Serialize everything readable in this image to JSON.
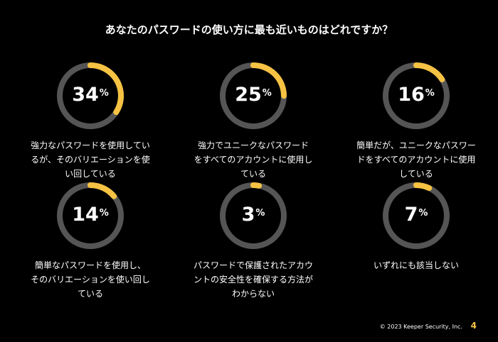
{
  "title": "あなたのパスワードの使い方に最も近いものはどれですか？",
  "colors": {
    "accent": "#f5c243",
    "track": "#555555",
    "background": "#000000",
    "text": "#ffffff"
  },
  "chart_data": {
    "type": "pie",
    "title": "あなたのパスワードの使い方に最も近いものはどれですか？",
    "unit": "%",
    "categories": [
      "強力なパスワードを使用しているが、そのバリエーションを使い回している",
      "強力でユニークなパスワードをすべてのアカウントに使用している",
      "簡単だが、ユニークなパスワードをすべてのアカウントに使用している",
      "簡単なパスワードを使用し、そのバリエーションを使い回している",
      "パスワードで保護されたアカウントの安全性を確保する方法がわからない",
      "いずれにも該当しない"
    ],
    "values": [
      34,
      25,
      16,
      14,
      3,
      7
    ],
    "items": [
      {
        "value": "34",
        "unit": "%",
        "label_lines": [
          "強力なパスワードを使用してい",
          "るが、そのバリエーションを使",
          "い回している"
        ]
      },
      {
        "value": "25",
        "unit": "%",
        "label_lines": [
          "強力でユニークなパスワード",
          "をすべてのアカウントに使用し",
          "ている"
        ]
      },
      {
        "value": "16",
        "unit": "%",
        "label_lines": [
          "簡単だが、ユニークなパスワー",
          "ドをすべてのアカウントに使用",
          "している"
        ]
      },
      {
        "value": "14",
        "unit": "%",
        "label_lines": [
          "簡単なパスワードを使用し、",
          "そのバリエーションを使い回し",
          "ている"
        ]
      },
      {
        "value": "3",
        "unit": "%",
        "label_lines": [
          "パスワードで保護されたアカウ",
          "ントの安全性を確保する方法が",
          "わからない"
        ]
      },
      {
        "value": "7",
        "unit": "%",
        "label_lines": [
          "いずれにも該当しない"
        ]
      }
    ]
  },
  "footer": {
    "copyright": "© 2023 Keeper Security, Inc.",
    "page_number": "4"
  }
}
